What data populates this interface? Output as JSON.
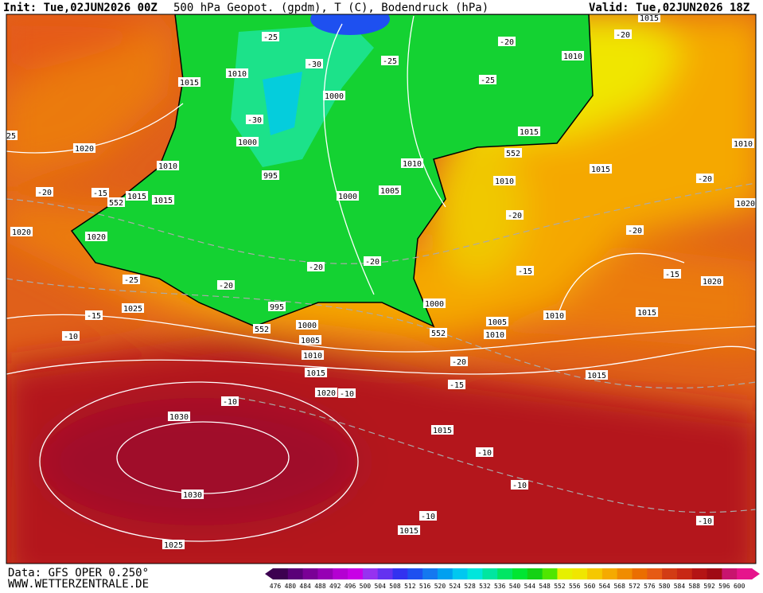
{
  "header": {
    "init": "Init: Tue,02JUN2026 00Z",
    "title": "500 hPa Geopot. (gpdm), T (C), Bodendruck (hPa)",
    "valid": "Valid: Tue,02JUN2026 18Z"
  },
  "footer": {
    "source": "Data: GFS OPER 0.250°",
    "site": "WWW.WETTERZENTRALE.DE"
  },
  "scale": {
    "labels": [
      476,
      480,
      484,
      488,
      492,
      496,
      500,
      504,
      508,
      512,
      516,
      520,
      524,
      528,
      532,
      536,
      540,
      544,
      548,
      552,
      556,
      560,
      564,
      568,
      572,
      576,
      580,
      584,
      588,
      592,
      596,
      600
    ],
    "colors": [
      "#3c0050",
      "#5a0078",
      "#7a0096",
      "#9600b4",
      "#b400d2",
      "#c800e6",
      "#9632f0",
      "#6432f0",
      "#3232f0",
      "#1e50f0",
      "#1478f0",
      "#00a0f0",
      "#00c8f0",
      "#00e6dc",
      "#00e6a0",
      "#00e664",
      "#00e632",
      "#14d214",
      "#50e600",
      "#e6f000",
      "#f0e600",
      "#f5c800",
      "#f5aa00",
      "#f08c00",
      "#eb6e00",
      "#e65a14",
      "#d23c14",
      "#c82814",
      "#b41414",
      "#a00a14",
      "#c8146e",
      "#e6148c"
    ]
  },
  "contour_labels": [
    "1015",
    "-25",
    "-20",
    "-20",
    "1010",
    "-30",
    "-25",
    "1015",
    "1010",
    "-25",
    "1000",
    "-30",
    "1015",
    "25",
    "1020",
    "1000",
    "1010",
    "1010",
    "1010",
    "552",
    "1015",
    "995",
    "-20",
    "1010",
    "-20",
    "-15",
    "552",
    "1015",
    "1015",
    "1000",
    "1005",
    "1020",
    "-20",
    "1020",
    "1020",
    "-20",
    "-20",
    "-20",
    "-15",
    "-15",
    "-25",
    "-20",
    "1020",
    "995",
    "1025",
    "1000",
    "-15",
    "1015",
    "1010",
    "552",
    "1000",
    "1005",
    "552",
    "-10",
    "1005",
    "1010",
    "1010",
    "-20",
    "1015",
    "1015",
    "-15",
    "1020",
    "-10",
    "-10",
    "1030",
    "1015",
    "-10",
    "-10",
    "1030",
    "-10",
    "1015",
    "-10",
    "1025"
  ]
}
